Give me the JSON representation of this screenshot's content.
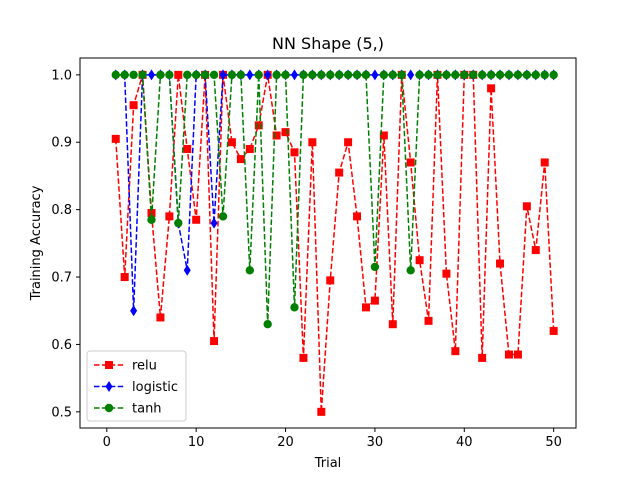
{
  "chart_data": {
    "type": "line",
    "title": "NN Shape (5,)",
    "xlabel": "Trial",
    "ylabel": "Training Accuracy",
    "xlim": [
      -3.0,
      52.5
    ],
    "ylim": [
      0.476,
      1.025
    ],
    "xticks": [
      0,
      10,
      20,
      30,
      40,
      50
    ],
    "yticks": [
      0.5,
      0.6,
      0.7,
      0.8,
      0.9,
      1.0
    ],
    "ytick_labels": [
      "0.5",
      "0.6",
      "0.7",
      "0.8",
      "0.9",
      "1.0"
    ],
    "grid": false,
    "legend_position": "lower-left",
    "x": [
      1,
      2,
      3,
      4,
      5,
      6,
      7,
      8,
      9,
      10,
      11,
      12,
      13,
      14,
      15,
      16,
      17,
      18,
      19,
      20,
      21,
      22,
      23,
      24,
      25,
      26,
      27,
      28,
      29,
      30,
      31,
      32,
      33,
      34,
      35,
      36,
      37,
      38,
      39,
      40,
      41,
      42,
      43,
      44,
      45,
      46,
      47,
      48,
      49,
      50
    ],
    "series": [
      {
        "name": "relu",
        "color": "#ff0000",
        "marker": "square",
        "values": [
          0.905,
          0.7,
          0.955,
          1.0,
          0.795,
          0.64,
          0.79,
          1.0,
          0.89,
          0.785,
          1.0,
          0.605,
          1.0,
          0.9,
          0.875,
          0.89,
          0.925,
          1.0,
          0.91,
          0.915,
          0.885,
          0.58,
          0.9,
          0.5,
          0.695,
          0.855,
          0.9,
          0.79,
          0.655,
          0.665,
          0.91,
          0.63,
          1.0,
          0.87,
          0.725,
          0.635,
          1.0,
          0.705,
          0.59,
          1.0,
          1.0,
          0.58,
          0.98,
          0.72,
          0.585,
          0.585,
          0.805,
          0.74,
          0.87,
          0.62
        ]
      },
      {
        "name": "logistic",
        "color": "#0000ff",
        "marker": "diamond",
        "values": [
          1.0,
          1.0,
          0.65,
          1.0,
          1.0,
          1.0,
          1.0,
          0.78,
          0.71,
          1.0,
          1.0,
          0.78,
          1.0,
          1.0,
          1.0,
          1.0,
          1.0,
          1.0,
          1.0,
          1.0,
          1.0,
          1.0,
          1.0,
          1.0,
          1.0,
          1.0,
          1.0,
          1.0,
          1.0,
          1.0,
          1.0,
          1.0,
          1.0,
          1.0,
          1.0,
          1.0,
          1.0,
          1.0,
          1.0,
          1.0,
          1.0,
          1.0,
          1.0,
          1.0,
          1.0,
          1.0,
          1.0,
          1.0,
          1.0,
          1.0
        ]
      },
      {
        "name": "tanh",
        "color": "#008000",
        "marker": "circle",
        "values": [
          1.0,
          1.0,
          1.0,
          1.0,
          0.785,
          1.0,
          1.0,
          0.78,
          1.0,
          1.0,
          1.0,
          1.0,
          0.79,
          1.0,
          1.0,
          0.71,
          1.0,
          0.63,
          1.0,
          1.0,
          0.655,
          1.0,
          1.0,
          1.0,
          1.0,
          1.0,
          1.0,
          1.0,
          1.0,
          0.715,
          1.0,
          1.0,
          1.0,
          0.71,
          1.0,
          1.0,
          1.0,
          1.0,
          1.0,
          1.0,
          1.0,
          1.0,
          1.0,
          1.0,
          1.0,
          1.0,
          1.0,
          1.0,
          1.0,
          1.0
        ]
      }
    ]
  }
}
